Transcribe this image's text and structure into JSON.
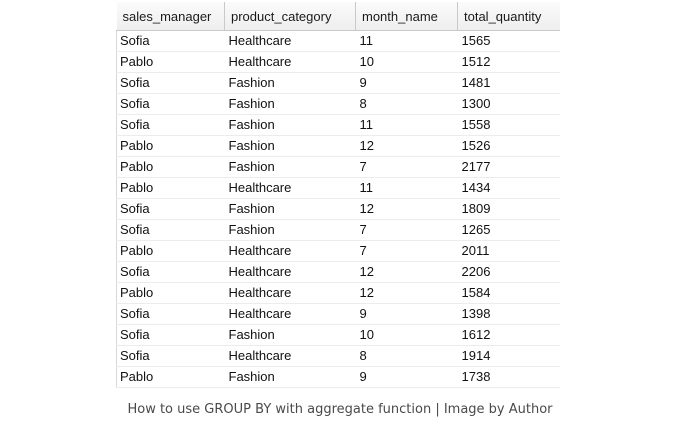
{
  "grid": {
    "columns": [
      "sales_manager",
      "product_category",
      "month_name",
      "total_quantity"
    ],
    "rows": [
      [
        "Sofia",
        "Healthcare",
        "11",
        "1565"
      ],
      [
        "Pablo",
        "Healthcare",
        "10",
        "1512"
      ],
      [
        "Sofia",
        "Fashion",
        "9",
        "1481"
      ],
      [
        "Sofia",
        "Fashion",
        "8",
        "1300"
      ],
      [
        "Sofia",
        "Fashion",
        "11",
        "1558"
      ],
      [
        "Pablo",
        "Fashion",
        "12",
        "1526"
      ],
      [
        "Pablo",
        "Fashion",
        "7",
        "2177"
      ],
      [
        "Pablo",
        "Healthcare",
        "11",
        "1434"
      ],
      [
        "Sofia",
        "Fashion",
        "12",
        "1809"
      ],
      [
        "Sofia",
        "Fashion",
        "7",
        "1265"
      ],
      [
        "Pablo",
        "Healthcare",
        "7",
        "2011"
      ],
      [
        "Sofia",
        "Healthcare",
        "12",
        "2206"
      ],
      [
        "Pablo",
        "Healthcare",
        "12",
        "1584"
      ],
      [
        "Sofia",
        "Healthcare",
        "9",
        "1398"
      ],
      [
        "Sofia",
        "Fashion",
        "10",
        "1612"
      ],
      [
        "Sofia",
        "Healthcare",
        "8",
        "1914"
      ],
      [
        "Pablo",
        "Fashion",
        "9",
        "1738"
      ]
    ]
  },
  "caption": "How to use GROUP BY with aggregate function | Image by Author"
}
